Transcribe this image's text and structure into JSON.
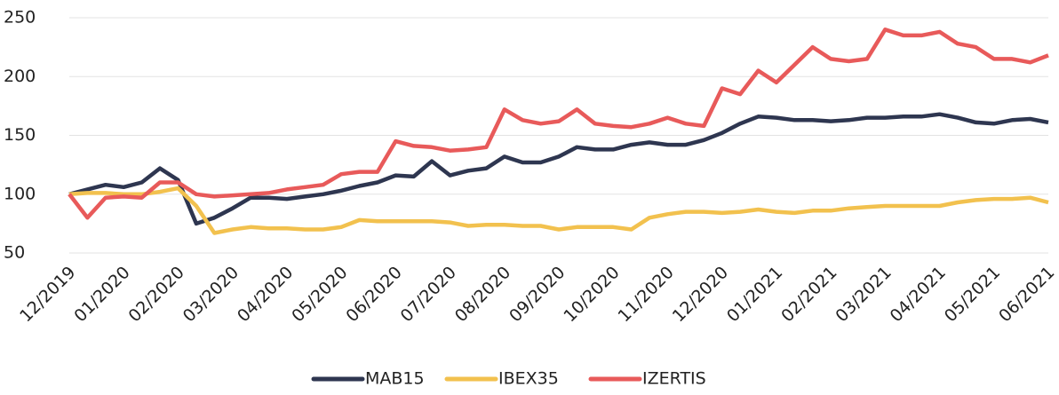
{
  "chart_data": {
    "type": "line",
    "categories": [
      "12/2019",
      null,
      null,
      "01/2020",
      null,
      null,
      "02/2020",
      null,
      null,
      "03/2020",
      null,
      null,
      "04/2020",
      null,
      null,
      "05/2020",
      null,
      null,
      "06/2020",
      null,
      null,
      "07/2020",
      null,
      null,
      "08/2020",
      null,
      null,
      "09/2020",
      null,
      null,
      "10/2020",
      null,
      null,
      "11/2020",
      null,
      null,
      "12/2020",
      null,
      null,
      "01/2021",
      null,
      null,
      "02/2021",
      null,
      null,
      "03/2021",
      null,
      null,
      "04/2021",
      null,
      null,
      "05/2021",
      null,
      null,
      "06/2021"
    ],
    "series": [
      {
        "name": "MAB15",
        "color": "#2e3650",
        "values": [
          100,
          104,
          108,
          106,
          110,
          122,
          112,
          75,
          80,
          88,
          97,
          97,
          96,
          98,
          100,
          103,
          107,
          110,
          116,
          115,
          128,
          116,
          120,
          122,
          132,
          127,
          127,
          132,
          140,
          138,
          138,
          142,
          144,
          142,
          142,
          146,
          152,
          160,
          166,
          165,
          163,
          163,
          162,
          163,
          165,
          165,
          166,
          166,
          168,
          165,
          161,
          160,
          163,
          164,
          161
        ]
      },
      {
        "name": "IBEX35",
        "color": "#f2c14e",
        "values": [
          100,
          101,
          101,
          100,
          100,
          102,
          105,
          90,
          67,
          70,
          72,
          71,
          71,
          70,
          70,
          72,
          78,
          77,
          77,
          77,
          77,
          76,
          73,
          74,
          74,
          73,
          73,
          70,
          72,
          72,
          72,
          70,
          80,
          83,
          85,
          85,
          84,
          85,
          87,
          85,
          84,
          86,
          86,
          88,
          89,
          90,
          90,
          90,
          90,
          93,
          95,
          96,
          96,
          97,
          93
        ]
      },
      {
        "name": "IZERTIS",
        "color": "#e85a5a",
        "values": [
          100,
          80,
          97,
          98,
          97,
          110,
          110,
          100,
          98,
          99,
          100,
          101,
          104,
          106,
          108,
          117,
          119,
          119,
          145,
          141,
          140,
          137,
          138,
          140,
          172,
          163,
          160,
          162,
          172,
          160,
          158,
          157,
          160,
          165,
          160,
          158,
          190,
          185,
          205,
          195,
          210,
          225,
          215,
          213,
          215,
          240,
          235,
          235,
          238,
          228,
          225,
          215,
          215,
          212,
          218
        ]
      }
    ],
    "ylim": [
      50,
      250
    ],
    "yticks": [
      50,
      100,
      150,
      200,
      250
    ],
    "grid": true,
    "legend": "bottom"
  }
}
